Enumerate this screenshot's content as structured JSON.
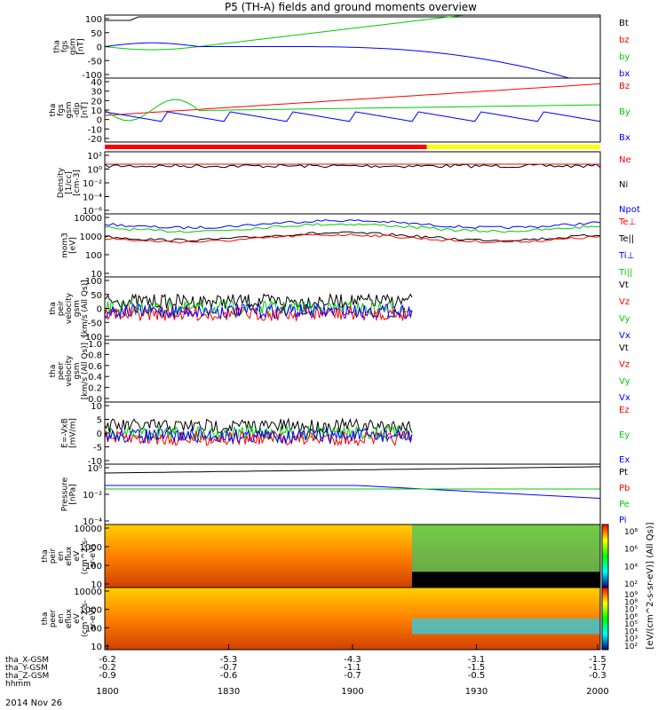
{
  "title": "P5 (TH-A) fields and ground moments overview",
  "date": "2014 Nov 26",
  "colors": {
    "black": "#000000",
    "red": "#ff0000",
    "green": "#00cc00",
    "blue": "#0000ff",
    "yellow": "#ffff00"
  },
  "chart_data": {
    "type": "line",
    "x_time_labels": [
      "1800",
      "1830",
      "1900",
      "1930",
      "2000"
    ],
    "ephemeris": [
      {
        "label": "tha_X-GSM",
        "values": [
          "-6.2",
          "-5.3",
          "-4.3",
          "-3.1",
          "-1.5"
        ]
      },
      {
        "label": "tha_Y-GSM",
        "values": [
          "-0.2",
          "-0.7",
          "-1.1",
          "-1.5",
          "-1.7"
        ]
      },
      {
        "label": "tha_Z-GSM",
        "values": [
          "-0.9",
          "-0.6",
          "-0.7",
          "-0.5",
          "-0.3"
        ]
      },
      {
        "label": "hhmm",
        "values": []
      }
    ],
    "panels": [
      {
        "ylabel": [
          "tha",
          "fgs",
          "gsm",
          "[nT]"
        ],
        "yticks": [
          "100",
          "50",
          "0",
          "-50",
          "-100"
        ],
        "legend": [
          {
            "name": "Bt",
            "color": "black"
          },
          {
            "name": "bz",
            "color": "red"
          },
          {
            "name": "by",
            "color": "green"
          },
          {
            "name": "bx",
            "color": "blue"
          }
        ]
      },
      {
        "ylabel": [
          "tha",
          "fgs",
          "gsm",
          "-dip",
          "[nT]"
        ],
        "yticks": [
          "40",
          "30",
          "20",
          "10",
          "0",
          "-10",
          "-20"
        ],
        "legend": [
          {
            "name": "Bz",
            "color": "red"
          },
          {
            "name": "By",
            "color": "green"
          },
          {
            "name": "Bx",
            "color": "blue"
          }
        ]
      },
      {
        "ylabel": [
          "Density",
          "[1/cc]",
          "[cm-3]"
        ],
        "yticks": [
          "10²",
          "10⁰",
          "10⁻²",
          "10⁻⁴",
          "10⁻⁶"
        ],
        "legend": [
          {
            "name": "Ne",
            "color": "red"
          },
          {
            "name": "Ni",
            "color": "black"
          },
          {
            "name": "Npot",
            "color": "blue"
          }
        ]
      },
      {
        "ylabel": [
          "mom3",
          "[eV]"
        ],
        "yticks": [
          "10000",
          "1000",
          "100",
          "10"
        ],
        "legend": [
          {
            "name": "Te⊥",
            "color": "red"
          },
          {
            "name": "Te||",
            "color": "black"
          },
          {
            "name": "Ti⊥",
            "color": "blue"
          },
          {
            "name": "Ti||",
            "color": "green"
          }
        ]
      },
      {
        "ylabel": [
          "tha",
          "peir",
          "velocity",
          "gsm",
          "[km/s (All Qs)]"
        ],
        "yticks": [
          "100",
          "50",
          "0",
          "-50",
          "-100"
        ],
        "legend": [
          {
            "name": "Vt",
            "color": "black"
          },
          {
            "name": "Vz",
            "color": "red"
          },
          {
            "name": "Vy",
            "color": "green"
          },
          {
            "name": "Vx",
            "color": "blue"
          }
        ]
      },
      {
        "ylabel": [
          "tha",
          "peer",
          "velocity",
          "gsm",
          "[km/s (All Qs)]"
        ],
        "yticks": [
          "1.0",
          "0.8",
          "0.6",
          "0.4",
          "0.2",
          "0.0"
        ],
        "legend": [
          {
            "name": "Vt",
            "color": "black"
          },
          {
            "name": "Vz",
            "color": "red"
          },
          {
            "name": "Vy",
            "color": "green"
          },
          {
            "name": "Vx",
            "color": "blue"
          }
        ]
      },
      {
        "ylabel": [
          "E=-VxB",
          "[mV/m]"
        ],
        "yticks": [
          "10",
          "5",
          "0",
          "-5",
          "-10"
        ],
        "legend": [
          {
            "name": "Ez",
            "color": "red"
          },
          {
            "name": "Ey",
            "color": "green"
          },
          {
            "name": "Ex",
            "color": "blue"
          }
        ]
      },
      {
        "ylabel": [
          "Pressure",
          "[nPa]"
        ],
        "yticks": [
          "10⁰",
          "10⁻²",
          "10⁻⁴"
        ],
        "legend": [
          {
            "name": "Pt",
            "color": "black"
          },
          {
            "name": "Pb",
            "color": "red"
          },
          {
            "name": "Pe",
            "color": "green"
          },
          {
            "name": "Pi",
            "color": "blue"
          }
        ]
      },
      {
        "ylabel": [
          "tha",
          "peir",
          "en",
          "eflux",
          "eV",
          "(cm^2-s-",
          "sr-eV)"
        ],
        "yticks": [
          "10000",
          "1000",
          "100",
          "10"
        ]
      },
      {
        "ylabel": [
          "tha",
          "peer",
          "en",
          "eflux",
          "eV",
          "(cm^2-s-",
          "sr-eV)"
        ],
        "yticks": [
          "10000",
          "1000",
          "100",
          "10"
        ]
      }
    ],
    "colorbar_ticks_ion": [
      "10⁸",
      "10⁶",
      "10⁴",
      "10²"
    ],
    "colorbar_ticks_el": [
      "10⁹",
      "10⁸",
      "10⁷",
      "10⁶",
      "10⁵",
      "10⁴",
      "10³",
      "10²"
    ],
    "colorbar_label": "[eV/(cm^2-s-sr-eV)] (All Qs)]"
  }
}
